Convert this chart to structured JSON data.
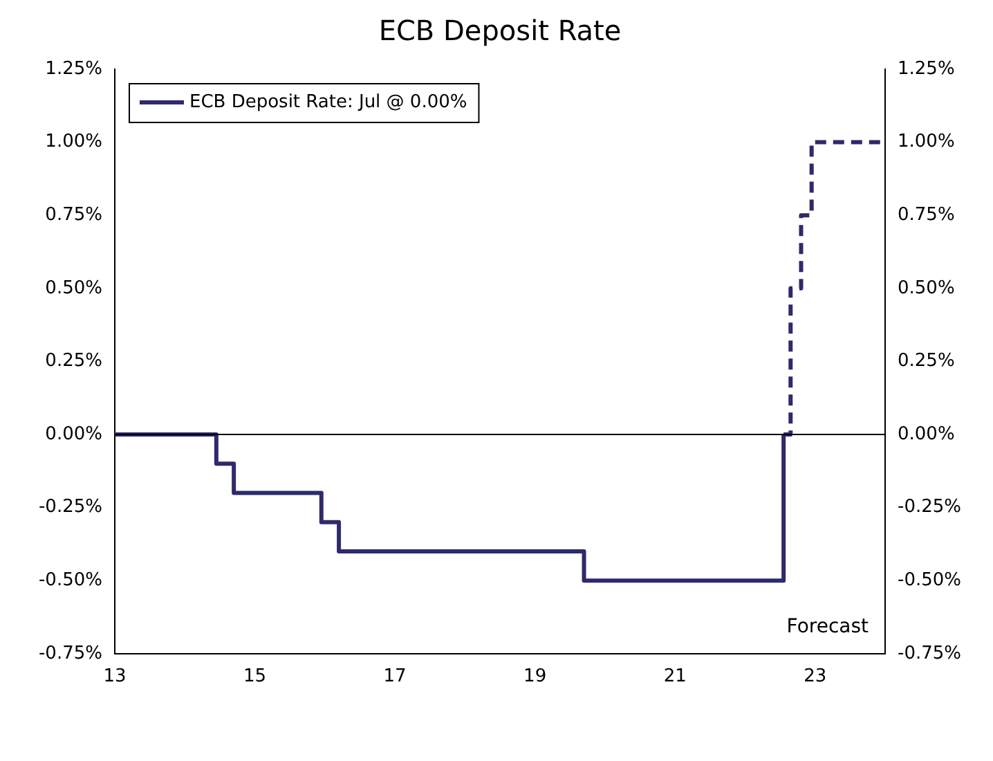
{
  "chart_data": {
    "type": "step",
    "title": "ECB Deposit Rate",
    "series": [
      {
        "name": "ECB Deposit Rate: Jul @ 0.00%",
        "color": "#2e2a6b",
        "line_style": "solid",
        "x": [
          13,
          14.45,
          14.7,
          15.95,
          16.2,
          19.7,
          22.55
        ],
        "values": [
          0,
          -0.1,
          -0.2,
          -0.3,
          -0.4,
          -0.5,
          0
        ]
      },
      {
        "color": "#2e2a6b",
        "line_style": "dashed",
        "x": [
          22.55,
          22.65,
          22.8,
          22.95,
          24
        ],
        "values": [
          0,
          0.5,
          0.75,
          1.0,
          1.0
        ]
      }
    ],
    "xlim": [
      13,
      24
    ],
    "xticks": [
      13,
      15,
      17,
      19,
      21,
      23
    ],
    "ylim": [
      -0.75,
      1.25
    ],
    "yticks": [
      {
        "value": -0.75,
        "label": "-0.75%"
      },
      {
        "value": -0.5,
        "label": "-0.50%"
      },
      {
        "value": -0.25,
        "label": "-0.25%"
      },
      {
        "value": 0,
        "label": "0.00%"
      },
      {
        "value": 0.25,
        "label": "0.25%"
      },
      {
        "value": 0.5,
        "label": "0.50%"
      },
      {
        "value": 0.75,
        "label": "0.75%"
      },
      {
        "value": 1.0,
        "label": "1.00%"
      },
      {
        "value": 1.25,
        "label": "1.25%"
      }
    ],
    "y2lim": [
      -0.75,
      1.25
    ],
    "y2ticks": [
      {
        "value": -0.75,
        "label": "-0.75%"
      },
      {
        "value": -0.5,
        "label": "-0.50%"
      },
      {
        "value": -0.25,
        "label": "-0.25%"
      },
      {
        "value": 0,
        "label": "0.00%"
      },
      {
        "value": 0.25,
        "label": "0.25%"
      },
      {
        "value": 0.5,
        "label": "0.50%"
      },
      {
        "value": 0.75,
        "label": "0.75%"
      },
      {
        "value": 1.0,
        "label": "1.00%"
      },
      {
        "value": 1.25,
        "label": "1.25%"
      }
    ],
    "ref_lines": [
      {
        "axis": "y",
        "value": 0,
        "color": "#000000"
      }
    ],
    "annotations": [
      "Forecast"
    ],
    "grid": false,
    "legend": "top left"
  }
}
